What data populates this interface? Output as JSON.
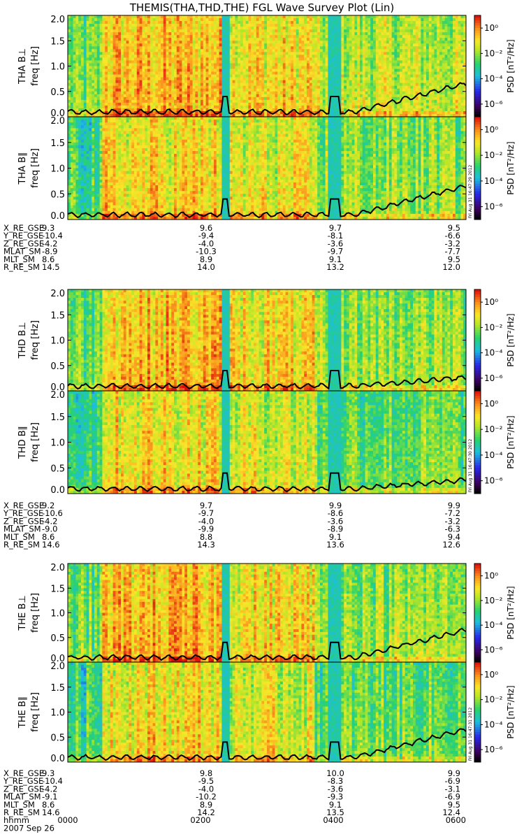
{
  "title": "THEMIS(THA,THD,THE) FGL Wave Survey Plot (Lin)",
  "chart_data": {
    "type": "heatmap",
    "title": "THEMIS(THA,THD,THE) FGL Wave Survey Plot (Lin)",
    "ylabel_unit": "freq [Hz]",
    "yticks": [
      "0.0",
      "0.5",
      "1.0",
      "1.5",
      "2.0"
    ],
    "ylim": [
      0,
      2.0
    ],
    "colorbar_label": "PSD [nT²/Hz]",
    "colorbar_ticks": [
      "10⁰",
      "10⁻²",
      "10⁻⁴",
      "10⁻⁶"
    ],
    "colorbar_exponents": [
      0,
      -2,
      -4,
      -6
    ],
    "colorbar_range_log10": [
      -7,
      1
    ],
    "panels": [
      {
        "probe": "THA",
        "component": "B⊥",
        "label": "THA B⊥"
      },
      {
        "probe": "THA",
        "component": "B∥",
        "label": "THA B∥",
        "stamp": "Fri Aug 31 16:47:29 2012"
      },
      {
        "probe": "THD",
        "component": "B⊥",
        "label": "THD B⊥"
      },
      {
        "probe": "THD",
        "component": "B∥",
        "label": "THD B∥",
        "stamp": "Fri Aug 31 16:47:30 2012"
      },
      {
        "probe": "THE",
        "component": "B⊥",
        "label": "THE B⊥"
      },
      {
        "probe": "THE",
        "component": "B∥",
        "label": "THE B∥",
        "stamp": "Fri Aug 31 16:47:31 2012"
      }
    ],
    "time_axis": {
      "hhmm": [
        "0000",
        "0200",
        "0400",
        "0600"
      ],
      "date": "2007 Sep 26",
      "label": "hhmm"
    },
    "orbit_blocks": [
      {
        "probe": "THA",
        "rows": [
          {
            "name": "X_RE_GSE",
            "values": [
              "9.3",
              "9.6",
              "9.7",
              "9.5"
            ]
          },
          {
            "name": "Y_RE_GSE",
            "values": [
              "-10.4",
              "-9.4",
              "-8.1",
              "-6.6"
            ]
          },
          {
            "name": "Z_RE_GSE",
            "values": [
              "-4.2",
              "-4.0",
              "-3.6",
              "-3.2"
            ]
          },
          {
            "name": "MLAT_SM",
            "values": [
              "-8.9",
              "-10.3",
              "-9.7",
              "-7.7"
            ]
          },
          {
            "name": "MLT_SM",
            "values": [
              "8.6",
              "8.9",
              "9.1",
              "9.5"
            ]
          },
          {
            "name": "R_RE_SM",
            "values": [
              "14.5",
              "14.0",
              "13.2",
              "12.0"
            ]
          }
        ]
      },
      {
        "probe": "THD",
        "rows": [
          {
            "name": "X_RE_GSE",
            "values": [
              "9.2",
              "9.7",
              "9.9",
              "9.9"
            ]
          },
          {
            "name": "Y_RE_GSE",
            "values": [
              "-10.6",
              "-9.7",
              "-8.6",
              "-7.2"
            ]
          },
          {
            "name": "Z_RE_GSE",
            "values": [
              "-4.2",
              "-4.0",
              "-3.6",
              "-3.2"
            ]
          },
          {
            "name": "MLAT_SM",
            "values": [
              "-9.0",
              "-9.9",
              "-8.9",
              "-6.3"
            ]
          },
          {
            "name": "MLT_SM",
            "values": [
              "8.6",
              "8.8",
              "9.1",
              "9.4"
            ]
          },
          {
            "name": "R_RE_SM",
            "values": [
              "14.6",
              "14.3",
              "13.6",
              "12.6"
            ]
          }
        ]
      },
      {
        "probe": "THE",
        "rows": [
          {
            "name": "X_RE_GSE",
            "values": [
              "9.3",
              "9.8",
              "10.0",
              "9.9"
            ]
          },
          {
            "name": "Y_RE_GSE",
            "values": [
              "-10.4",
              "-9.5",
              "-8.3",
              "-6.9"
            ]
          },
          {
            "name": "Z_RE_GSE",
            "values": [
              "-4.2",
              "-4.0",
              "-3.6",
              "-3.1"
            ]
          },
          {
            "name": "MLAT_SM",
            "values": [
              "-9.1",
              "-10.2",
              "-9.3",
              "-6.9"
            ]
          },
          {
            "name": "MLT_SM",
            "values": [
              "8.6",
              "8.9",
              "9.1",
              "9.5"
            ]
          },
          {
            "name": "R_RE_SM",
            "values": [
              "14.6",
              "14.2",
              "13.5",
              "12.4"
            ]
          }
        ]
      }
    ]
  }
}
